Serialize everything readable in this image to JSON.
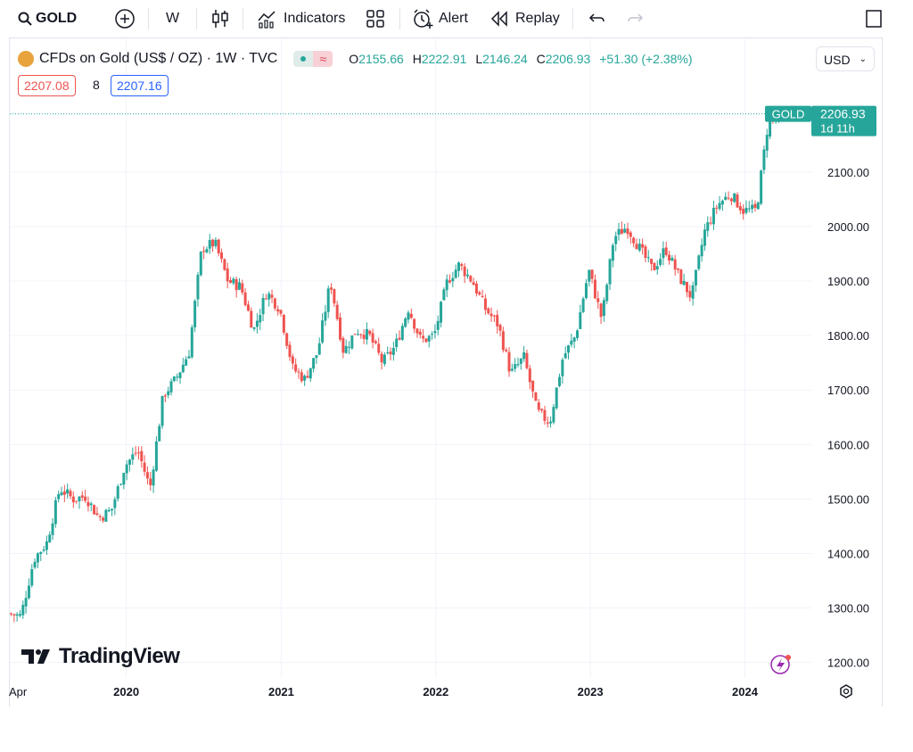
{
  "toolbar": {
    "symbol": "GOLD",
    "interval": "W",
    "indicators_label": "Indicators",
    "alert_label": "Alert",
    "replay_label": "Replay"
  },
  "legend": {
    "title": "CFDs on Gold (US$ / OZ) · 1W · TVC",
    "open_key": "O",
    "open": "2155.66",
    "high_key": "H",
    "high": "2222.91",
    "low_key": "L",
    "low": "2146.24",
    "close_key": "C",
    "close": "2206.93",
    "change": "+51.30 (+2.38%)",
    "bid": "2207.08",
    "spread": "8",
    "ask": "2207.16"
  },
  "currency": "USD",
  "price_tag": {
    "symbol": "GOLD",
    "price": "2206.93",
    "countdown": "1d 11h"
  },
  "brand": "TradingView",
  "colors": {
    "up": "#26a69a",
    "down": "#ef5350",
    "text": "#131722"
  },
  "chart_data": {
    "type": "candlestick",
    "interval": "1W",
    "y_ticks": [
      "2100.00",
      "2000.00",
      "1900.00",
      "1800.00",
      "1700.00",
      "1600.00",
      "1500.00",
      "1400.00",
      "1300.00",
      "1200.00"
    ],
    "x_ticks": [
      "Apr",
      "2020",
      "2021",
      "2022",
      "2023",
      "2024"
    ],
    "grid": true,
    "last_price": 2206.93,
    "path": [
      [
        "2019-04-01",
        1290
      ],
      [
        "2019-05-01",
        1285
      ],
      [
        "2019-06-01",
        1390
      ],
      [
        "2019-07-01",
        1420
      ],
      [
        "2019-08-01",
        1520
      ],
      [
        "2019-09-01",
        1500
      ],
      [
        "2019-10-01",
        1505
      ],
      [
        "2019-11-01",
        1465
      ],
      [
        "2019-12-01",
        1480
      ],
      [
        "2020-01-01",
        1560
      ],
      [
        "2020-02-01",
        1590
      ],
      [
        "2020-03-01",
        1520
      ],
      [
        "2020-04-01",
        1690
      ],
      [
        "2020-05-01",
        1720
      ],
      [
        "2020-06-01",
        1770
      ],
      [
        "2020-07-01",
        1960
      ],
      [
        "2020-08-01",
        1970
      ],
      [
        "2020-09-01",
        1900
      ],
      [
        "2020-10-01",
        1890
      ],
      [
        "2020-11-01",
        1810
      ],
      [
        "2020-12-01",
        1880
      ],
      [
        "2021-01-01",
        1850
      ],
      [
        "2021-02-01",
        1740
      ],
      [
        "2021-03-01",
        1720
      ],
      [
        "2021-04-01",
        1770
      ],
      [
        "2021-05-01",
        1900
      ],
      [
        "2021-06-01",
        1770
      ],
      [
        "2021-07-01",
        1810
      ],
      [
        "2021-08-01",
        1800
      ],
      [
        "2021-09-01",
        1750
      ],
      [
        "2021-10-01",
        1780
      ],
      [
        "2021-11-01",
        1850
      ],
      [
        "2021-12-01",
        1790
      ],
      [
        "2022-01-01",
        1800
      ],
      [
        "2022-02-01",
        1900
      ],
      [
        "2022-03-01",
        1930
      ],
      [
        "2022-04-01",
        1900
      ],
      [
        "2022-05-01",
        1850
      ],
      [
        "2022-06-01",
        1820
      ],
      [
        "2022-07-01",
        1730
      ],
      [
        "2022-08-01",
        1760
      ],
      [
        "2022-09-01",
        1660
      ],
      [
        "2022-10-01",
        1640
      ],
      [
        "2022-11-01",
        1760
      ],
      [
        "2022-12-01",
        1800
      ],
      [
        "2023-01-01",
        1920
      ],
      [
        "2023-02-01",
        1830
      ],
      [
        "2023-03-01",
        1980
      ],
      [
        "2023-04-01",
        2000
      ],
      [
        "2023-05-01",
        1960
      ],
      [
        "2023-06-01",
        1920
      ],
      [
        "2023-07-01",
        1960
      ],
      [
        "2023-08-01",
        1910
      ],
      [
        "2023-09-01",
        1870
      ],
      [
        "2023-10-01",
        1990
      ],
      [
        "2023-11-01",
        2040
      ],
      [
        "2023-12-01",
        2060
      ],
      [
        "2024-01-01",
        2030
      ],
      [
        "2024-02-01",
        2030
      ],
      [
        "2024-03-01",
        2200
      ]
    ]
  }
}
